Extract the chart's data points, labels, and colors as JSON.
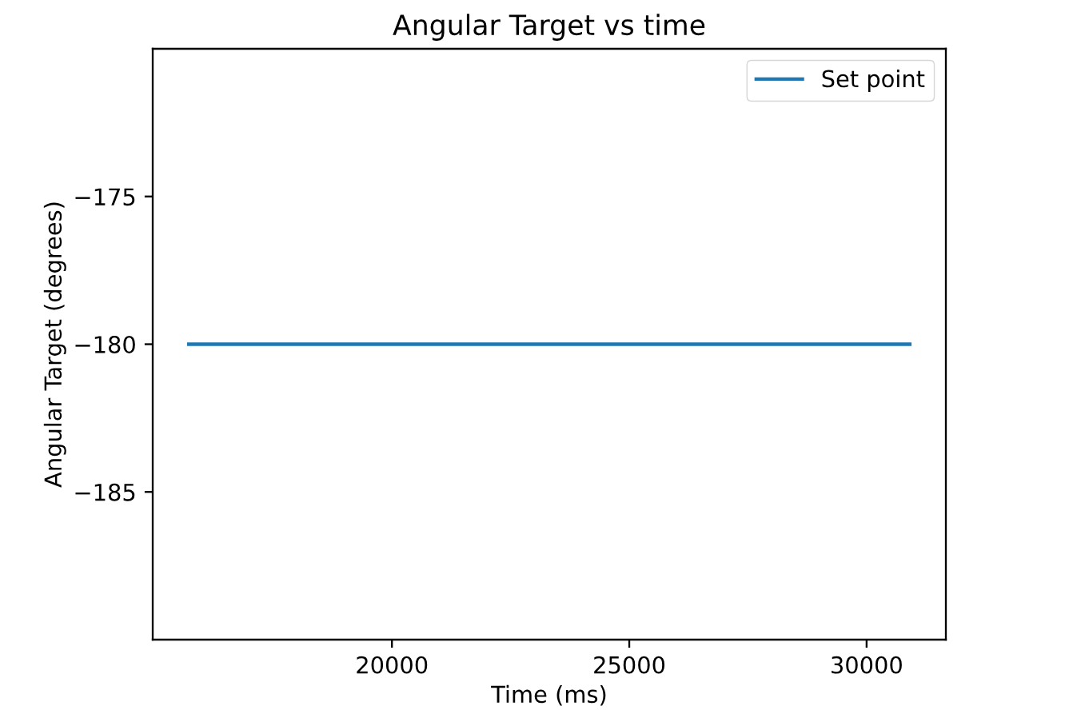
{
  "chart_data": {
    "type": "line",
    "title": "Angular Target vs time",
    "xlabel": "Time (ms)",
    "ylabel": "Angular Target (degrees)",
    "x": [
      15720,
      30910
    ],
    "series": [
      {
        "name": "Set point",
        "color": "#1f77b4",
        "values": [
          -180,
          -180
        ]
      }
    ],
    "xlim": [
      14960,
      31670
    ],
    "ylim": [
      -190,
      -170
    ],
    "xticks": [
      20000,
      25000,
      30000
    ],
    "yticks": [
      {
        "value": -175,
        "label": "−175"
      },
      {
        "value": -180,
        "label": "−180"
      },
      {
        "value": -185,
        "label": "−185"
      }
    ],
    "legend": "top right"
  }
}
